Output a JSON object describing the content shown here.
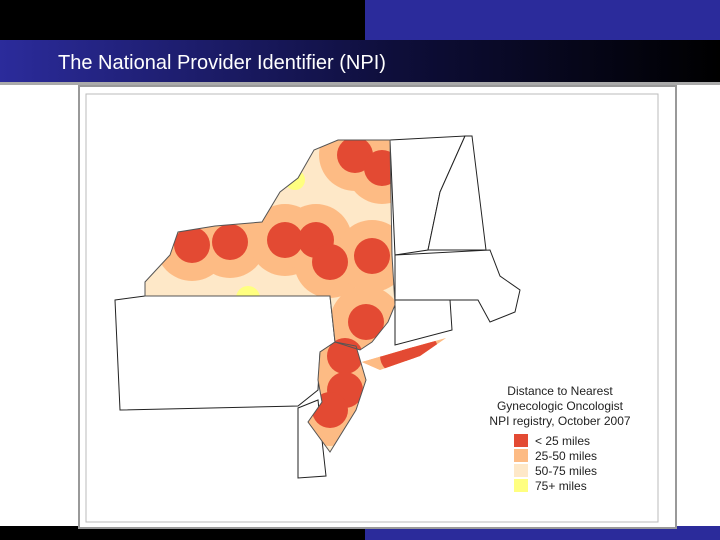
{
  "header": {
    "title": "The National Provider Identifier (NPI)"
  },
  "legend": {
    "title": [
      "Distance to Nearest",
      "Gynecologic Oncologist",
      "NPI registry, October 2007"
    ],
    "items": [
      {
        "label": "< 25 miles",
        "color": "#e34a33"
      },
      {
        "label": "25-50 miles",
        "color": "#fdbb84"
      },
      {
        "label": "50-75 miles",
        "color": "#fee8c8"
      },
      {
        "label": "75+ miles",
        "color": "#ffff80"
      }
    ]
  }
}
